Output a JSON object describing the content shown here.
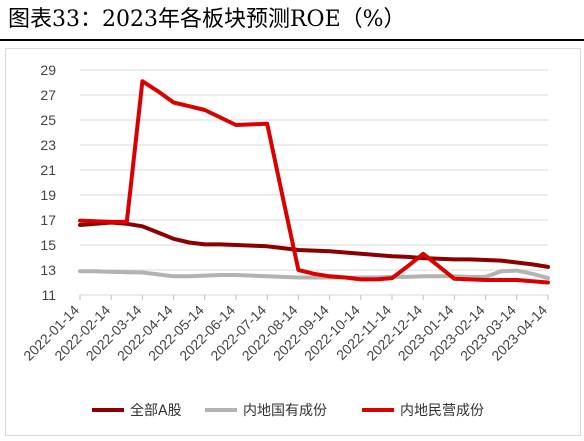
{
  "title": "图表33：2023年各板块预测ROE（%）",
  "chart_data": {
    "type": "line",
    "title": "图表33：2023年各板块预测ROE（%）",
    "categories": [
      "2022-01-14",
      "2022-02-14",
      "2022-03-14",
      "2022-04-14",
      "2022-05-14",
      "2022-06-14",
      "2022-07-14",
      "2022-08-14",
      "2022-09-14",
      "2022-10-14",
      "2022-11-14",
      "2022-12-14",
      "2023-01-14",
      "2023-02-14",
      "2023-03-14",
      "2023-04-14"
    ],
    "x": [
      "2022-01-14",
      "2022-01-28",
      "2022-02-14",
      "2022-02-28",
      "2022-03-14",
      "2022-03-28",
      "2022-04-14",
      "2022-04-28",
      "2022-05-14",
      "2022-05-28",
      "2022-06-14",
      "2022-06-28",
      "2022-07-14",
      "2022-07-28",
      "2022-08-14",
      "2022-08-28",
      "2022-09-14",
      "2022-09-28",
      "2022-10-14",
      "2022-10-28",
      "2022-11-14",
      "2022-11-28",
      "2022-12-14",
      "2022-12-28",
      "2023-01-14",
      "2023-01-28",
      "2023-02-14",
      "2023-02-28",
      "2023-03-14",
      "2023-03-28",
      "2023-04-14"
    ],
    "series": [
      {
        "name": "全部A股",
        "color": "#8b0000",
        "values": [
          16.6,
          16.7,
          16.8,
          16.7,
          16.5,
          16.0,
          15.5,
          15.2,
          15.05,
          15.05,
          15.0,
          14.95,
          14.9,
          14.75,
          14.6,
          14.55,
          14.5,
          14.4,
          14.3,
          14.2,
          14.1,
          14.05,
          13.95,
          13.9,
          13.85,
          13.85,
          13.8,
          13.75,
          13.6,
          13.45,
          13.25
        ]
      },
      {
        "name": "内地国有成份",
        "color": "#b3b3b3",
        "values": [
          12.9,
          12.9,
          12.85,
          12.82,
          12.8,
          12.65,
          12.5,
          12.5,
          12.55,
          12.6,
          12.6,
          12.55,
          12.5,
          12.45,
          12.4,
          12.4,
          12.4,
          12.4,
          12.4,
          12.4,
          12.45,
          12.45,
          12.5,
          12.5,
          12.5,
          12.45,
          12.45,
          12.9,
          12.95,
          12.7,
          12.35
        ]
      },
      {
        "name": "内地民营成份",
        "color": "#d90000",
        "values": [
          16.95,
          16.9,
          16.85,
          16.85,
          28.1,
          27.3,
          26.4,
          26.1,
          25.8,
          25.2,
          24.6,
          24.65,
          24.7,
          18.8,
          13.0,
          12.7,
          12.5,
          12.4,
          12.25,
          12.25,
          12.35,
          13.3,
          14.3,
          13.3,
          12.3,
          12.25,
          12.2,
          12.2,
          12.2,
          12.1,
          12.0
        ]
      }
    ],
    "ylim": [
      11,
      29
    ],
    "yticks": [
      11,
      13,
      15,
      17,
      19,
      21,
      23,
      25,
      27,
      29
    ],
    "grid": "horizontal",
    "legend": "bottom"
  }
}
